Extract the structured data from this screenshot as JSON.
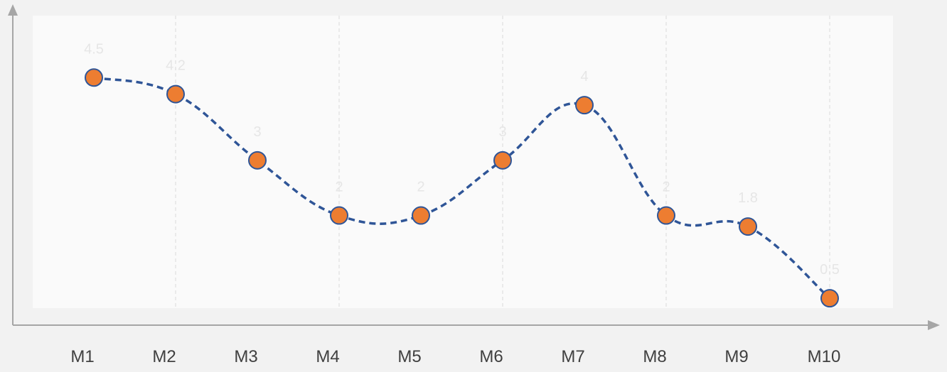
{
  "chart_data": {
    "type": "line",
    "title": "",
    "xlabel": "",
    "ylabel": "",
    "categories": [
      "M1",
      "M2",
      "M3",
      "M4",
      "M5",
      "M6",
      "M7",
      "M8",
      "M9",
      "M10"
    ],
    "series": [
      {
        "values": [
          4.5,
          4.2,
          3,
          2,
          2,
          3,
          4,
          2,
          1.8,
          0.5
        ],
        "line_color": "#2f5597",
        "line_style": "dashed",
        "smooth": true,
        "marker_color": "#ed7d31",
        "marker_edge_color": "#2f5597"
      }
    ],
    "data_labels": [
      "4.5",
      "4.2",
      "3",
      "2",
      "2",
      "3",
      "4",
      "2",
      "1.8",
      "0.5"
    ],
    "ylim": [
      0,
      5.7
    ],
    "y_axis_tick_labels": false,
    "grid": "vertical-dashed",
    "legend": "none",
    "colors": {
      "background": "#f2f2f2",
      "plot_area": "#fafafa",
      "axis": "#a6a6a6",
      "grid": "#d9d9d9",
      "tick_label": "#404040",
      "data_label": "#e6e6e6"
    }
  }
}
